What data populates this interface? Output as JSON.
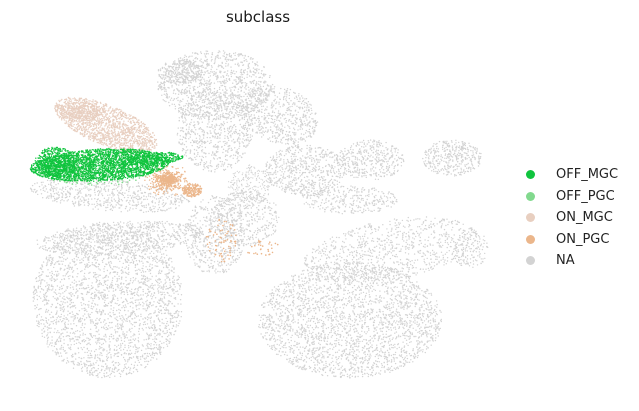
{
  "chart_data": {
    "type": "scatter",
    "title": "subclass",
    "xlabel": "",
    "ylabel": "",
    "grid": false,
    "legend_placement": "right",
    "series": [
      {
        "name": "OFF_MGC",
        "color": "#10c43e"
      },
      {
        "name": "OFF_PGC",
        "color": "#82d98e"
      },
      {
        "name": "ON_MGC",
        "color": "#e8cfc0"
      },
      {
        "name": "ON_PGC",
        "color": "#ebb68b"
      },
      {
        "name": "NA",
        "color": "#d3d3d3"
      }
    ]
  }
}
